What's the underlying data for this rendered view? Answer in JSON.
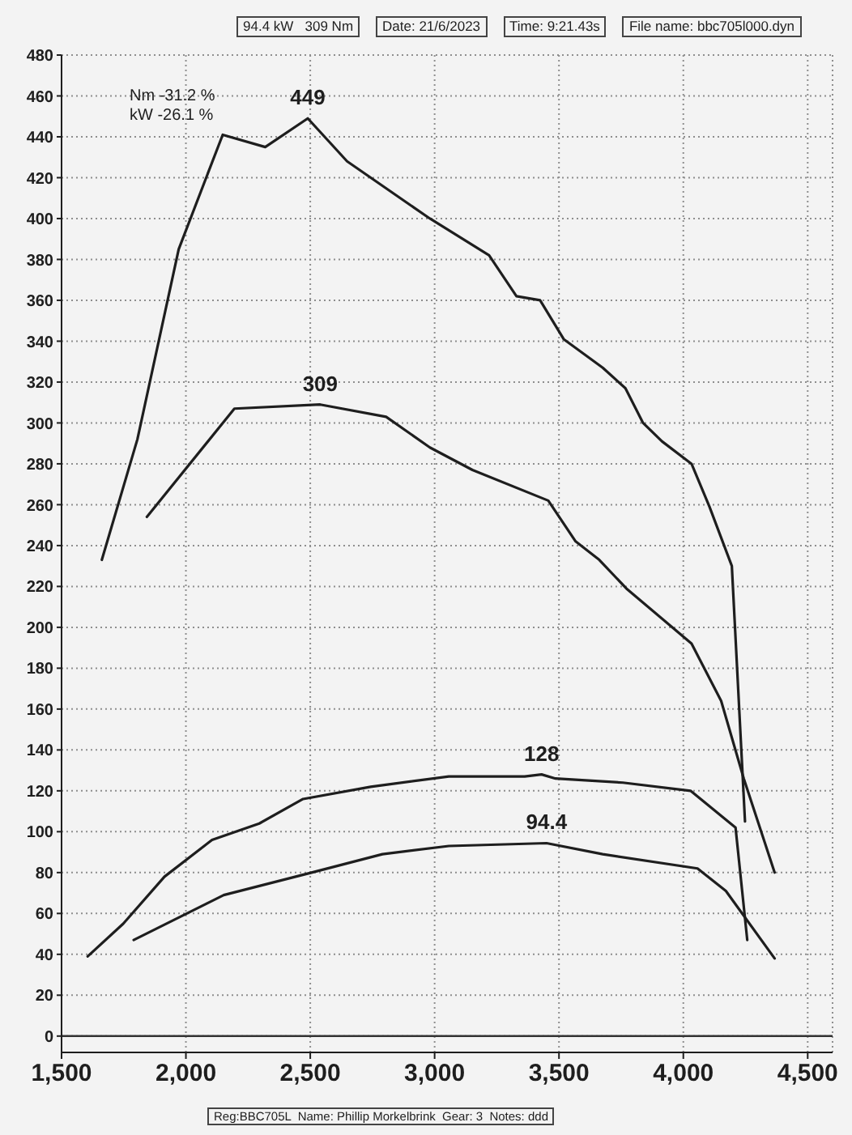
{
  "chart_data": {
    "type": "line",
    "xlim": [
      1500,
      4600
    ],
    "xticks": [
      {
        "value": 1500,
        "label": "1,500"
      },
      {
        "value": 2000,
        "label": "2,000"
      },
      {
        "value": 2500,
        "label": "2,500"
      },
      {
        "value": 3000,
        "label": "3,000"
      },
      {
        "value": 3500,
        "label": "3,500"
      },
      {
        "value": 4000,
        "label": "4,000"
      },
      {
        "value": 4500,
        "label": "4,500"
      }
    ],
    "ylim": [
      -8,
      480
    ],
    "yticks": [
      0,
      20,
      40,
      60,
      80,
      100,
      120,
      140,
      160,
      180,
      200,
      220,
      240,
      260,
      280,
      300,
      320,
      340,
      360,
      380,
      400,
      420,
      440,
      460,
      480
    ],
    "grid": true,
    "ref_lines": [
      {
        "axis": "y",
        "value": 0,
        "color": "#333333"
      }
    ],
    "series": [
      {
        "color": "#1e1e1e",
        "x": [
          1662,
          1805,
          1971,
          2148,
          2319,
          2490,
          2648,
          2981,
          3219,
          3329,
          3424,
          3519,
          3676,
          3767,
          3838,
          3914,
          4033,
          4105,
          4195,
          4248
        ],
        "values": [
          233,
          292,
          385,
          441,
          435,
          449,
          428,
          400,
          382,
          362,
          360,
          341,
          327,
          317,
          300,
          291,
          280,
          259,
          230,
          105
        ]
      },
      {
        "color": "#1e1e1e",
        "x": [
          1843,
          2195,
          2540,
          2805,
          2981,
          3152,
          3457,
          3567,
          3662,
          3771,
          4033,
          4152,
          4243,
          4367
        ],
        "values": [
          254,
          307,
          309,
          303,
          288,
          277,
          262,
          242,
          233,
          219,
          192,
          164,
          126,
          80
        ]
      },
      {
        "color": "#1e1e1e",
        "x": [
          1605,
          1748,
          1914,
          2105,
          2295,
          2471,
          2743,
          3057,
          3362,
          3430,
          3486,
          3757,
          4029,
          4210,
          4257
        ],
        "values": [
          39,
          55,
          78,
          96,
          104,
          116,
          122,
          127,
          127,
          128,
          126,
          124,
          120,
          102,
          47
        ]
      },
      {
        "color": "#1e1e1e",
        "x": [
          1790,
          2152,
          2505,
          2790,
          3057,
          3450,
          3676,
          4057,
          4171,
          4367
        ],
        "values": [
          47,
          69,
          80,
          89,
          93,
          94.4,
          89,
          82,
          71,
          38
        ]
      }
    ],
    "annotations": [
      {
        "text": "449",
        "x": 2490,
        "y": 449
      },
      {
        "text": "309",
        "x": 2540,
        "y": 309
      },
      {
        "text": "128",
        "x": 3430,
        "y": 128
      },
      {
        "text": "94.4",
        "x": 3450,
        "y": 94.4
      },
      "94.4 kW   309 Nm",
      "Date: 21/6/2023",
      "Time: 9:21.43s",
      "File name: bbc705l000.dyn",
      "Nm -31.2 %",
      "kW -26.1 %",
      "Reg:BBC705L  Name: Phillip Morkelbrink  Gear: 3  Notes: ddd"
    ]
  }
}
